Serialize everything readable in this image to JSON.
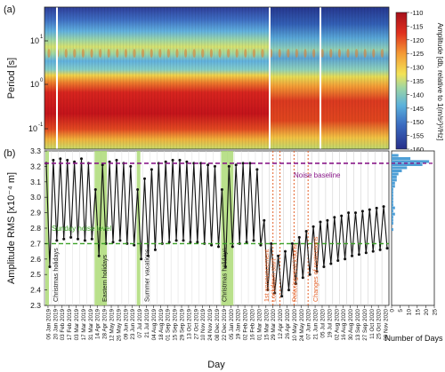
{
  "panel_a": {
    "tag": "(a)",
    "ylabel": "Period [s]",
    "yticks": [
      "10",
      "10",
      "10"
    ],
    "yexps": [
      "1",
      "0",
      "-1"
    ],
    "colorbar_label": "Amplitude [db, relative to 1(m/s²)²/Hz]",
    "colorbar_ticks": [
      "-110",
      "-115",
      "-120",
      "-125",
      "-130",
      "-135",
      "-140",
      "-145",
      "-150",
      "-155",
      "-160"
    ]
  },
  "panel_b": {
    "tag": "(b)",
    "ylabel": "Amplitude RMS [x10⁻⁴ m]",
    "xlabel": "Day",
    "noise_baseline_label": "Noise baseline",
    "sunday_label": "Sunday noise level",
    "hist_ticks": [
      "0",
      "5",
      "10",
      "15",
      "20",
      "25"
    ],
    "hist_xlabel": "Number of Days",
    "annotations": [
      {
        "text": "Christmas holidays",
        "color": "#1a1a1a"
      },
      {
        "text": "Eastern holidays",
        "color": "#1a1a1a"
      },
      {
        "text": "Summer vacations",
        "color": "#1a1a1a"
      },
      {
        "text": "Christmas holidays",
        "color": "#1a1a1a"
      },
      {
        "text": "1st announcement",
        "color": "#e2622a"
      },
      {
        "text": "Lockdown start",
        "color": "#e2622a"
      },
      {
        "text": "Relaxing restrictions",
        "color": "#e2622a"
      },
      {
        "text": "Changes of restrictions",
        "color": "#e2622a"
      }
    ]
  },
  "chart_data": {
    "type": "line",
    "x_dates": [
      "06 Jan 2019",
      "20 Jan 2019",
      "03 Feb 2019",
      "17 Feb 2019",
      "03 Mar 2019",
      "17 Mar 2019",
      "31 Mar 2019",
      "14 Apr 2019",
      "28 Apr 2019",
      "12 May 2019",
      "26 May 2019",
      "09 Jun 2019",
      "23 Jun 2019",
      "07 Jul 2019",
      "21 Jul 2019",
      "04 Aug 2019",
      "18 Aug 2019",
      "01 Sep 2019",
      "15 Sep 2019",
      "29 Sep 2019",
      "13 Oct 2019",
      "27 Oct 2019",
      "10 Nov 2019",
      "24 Nov 2019",
      "08 Dec 2019",
      "22 Dec 2019",
      "05 Jan 2020",
      "19 Jan 2020",
      "02 Feb 2020",
      "16 Feb 2020",
      "01 Mar 2020",
      "15 Mar 2020",
      "29 Mar 2020",
      "12 Apr 2020",
      "26 Apr 2020",
      "10 May 2020",
      "24 May 2020",
      "07 Jun 2020",
      "21 Jun 2020",
      "05 Jul 2020",
      "19 Jul 2020",
      "02 Aug 2020",
      "16 Aug 2020",
      "30 Aug 2020",
      "13 Sep 2020",
      "27 Sep 2020",
      "11 Oct 2020",
      "25 Oct 2020",
      "09 Nov 2020"
    ],
    "ylim": [
      2.3,
      3.3
    ],
    "yticks": [
      2.3,
      2.4,
      2.5,
      2.6,
      2.7,
      2.8,
      2.9,
      3.0,
      3.1,
      3.2,
      3.3
    ],
    "weekday_rms": [
      3.22,
      3.24,
      3.25,
      3.24,
      3.23,
      3.25,
      3.22,
      3.05,
      3.21,
      3.23,
      3.24,
      3.22,
      3.2,
      3.05,
      3.12,
      3.18,
      3.22,
      3.23,
      3.24,
      3.24,
      3.23,
      3.22,
      3.22,
      3.21,
      3.2,
      3.05,
      3.2,
      3.21,
      3.22,
      3.22,
      3.18,
      2.85,
      2.7,
      2.62,
      2.65,
      2.7,
      2.74,
      2.78,
      2.81,
      2.84,
      2.85,
      2.87,
      2.88,
      2.9,
      2.9,
      2.91,
      2.92,
      2.93,
      2.94
    ],
    "sunday_rms": [
      2.55,
      2.72,
      2.73,
      2.74,
      2.73,
      2.72,
      2.73,
      2.62,
      2.7,
      2.71,
      2.72,
      2.7,
      2.69,
      2.6,
      2.62,
      2.66,
      2.7,
      2.71,
      2.72,
      2.72,
      2.71,
      2.71,
      2.7,
      2.69,
      2.68,
      2.55,
      2.68,
      2.7,
      2.71,
      2.72,
      2.69,
      2.4,
      2.38,
      2.36,
      2.4,
      2.44,
      2.48,
      2.5,
      2.52,
      2.55,
      2.57,
      2.59,
      2.6,
      2.62,
      2.63,
      2.64,
      2.65,
      2.66,
      2.67
    ],
    "noise_baseline": 3.22,
    "sunday_noise_level": 2.7,
    "highlight_periods": [
      {
        "start": "06 Jan 2019",
        "end": "13 Jan 2019"
      },
      {
        "start": "14 Apr 2019",
        "end": "28 Apr 2019"
      },
      {
        "start": "07 Jul 2019",
        "end": "25 Jul 2019"
      },
      {
        "start": "22 Dec 2019",
        "end": "05 Jan 2020"
      }
    ],
    "event_dates": [
      "29 Mar 2020",
      "12 Apr 2020",
      "10 May 2020",
      "07 Jun 2020"
    ],
    "histogram": {
      "bins": [
        3.3,
        3.28,
        3.26,
        3.24,
        3.22,
        3.2,
        3.18,
        3.16,
        3.14,
        3.12,
        3.1,
        3.08,
        3.06,
        3.04,
        3.02,
        3.0,
        2.98,
        2.96,
        2.94,
        2.92,
        2.9,
        2.88,
        2.86,
        2.84,
        2.82,
        2.8
      ],
      "counts": [
        0,
        4,
        11,
        22,
        18,
        9,
        6,
        4,
        3,
        3,
        2,
        2,
        1,
        1,
        1,
        1,
        1,
        1,
        2,
        1,
        2,
        1,
        1,
        1,
        0,
        1
      ],
      "xlim": [
        0,
        25
      ]
    },
    "spectrogram": {
      "period_range": [
        0.02,
        80
      ],
      "amp_range_db": [
        -160,
        -110
      ]
    }
  },
  "colors": {
    "weekday_line": "#111111",
    "noise_baseline": "#8a1a8a",
    "sunday_line": "#3aa025",
    "highlight": "#a8d86e",
    "event": "#e2622a",
    "histogram": "#4f9fd6"
  }
}
